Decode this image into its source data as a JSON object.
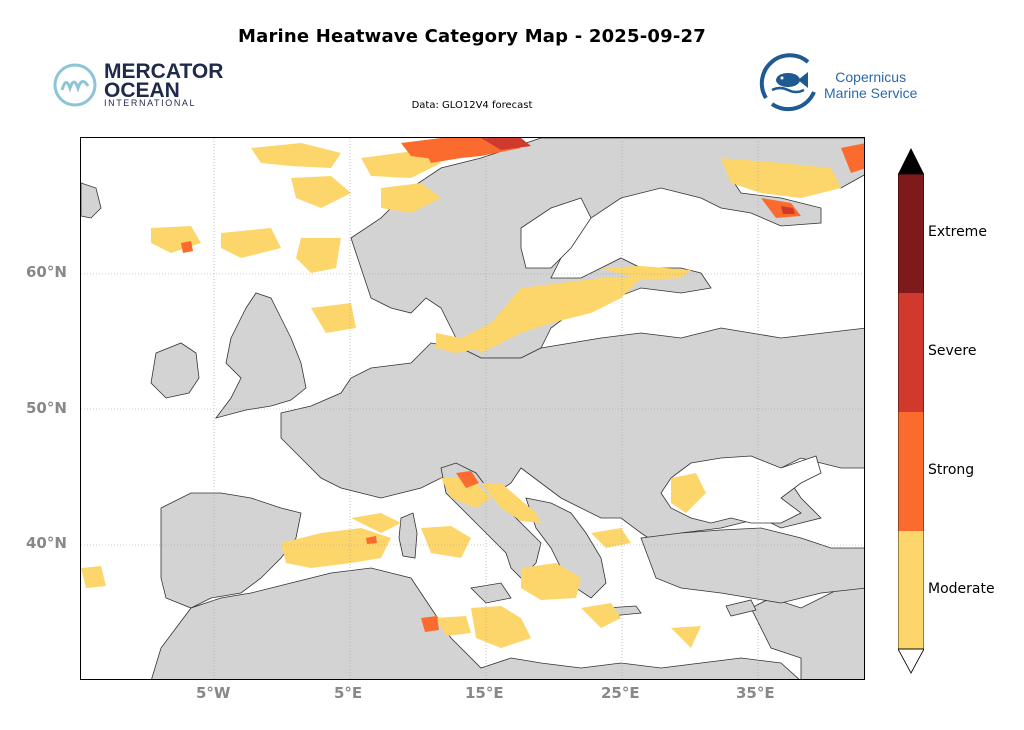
{
  "title": "Marine Heatwave Category Map - 2025-09-27",
  "source_label": "Data: GLO12V4 forecast",
  "logos": {
    "mercator": {
      "line1": "MERCATOR",
      "line2": "OCEAN",
      "line3": "INTERNATIONAL"
    },
    "copernicus": {
      "line1": "Copernicus",
      "line2": "Marine Service"
    }
  },
  "axes": {
    "y_ticks": [
      "60°N",
      "50°N",
      "40°N"
    ],
    "x_ticks": [
      "5°W",
      "5°E",
      "15°E",
      "25°E",
      "35°E"
    ]
  },
  "colorbar": {
    "labels": [
      "Extreme",
      "Severe",
      "Strong",
      "Moderate"
    ],
    "colors": {
      "extreme": "#7e1a1c",
      "severe": "#cf3a2d",
      "strong": "#fb6b2e",
      "moderate": "#fcd56b"
    }
  },
  "colors": {
    "land": "#d3d3d3",
    "sea": "#ffffff",
    "gridline": "#999999"
  }
}
